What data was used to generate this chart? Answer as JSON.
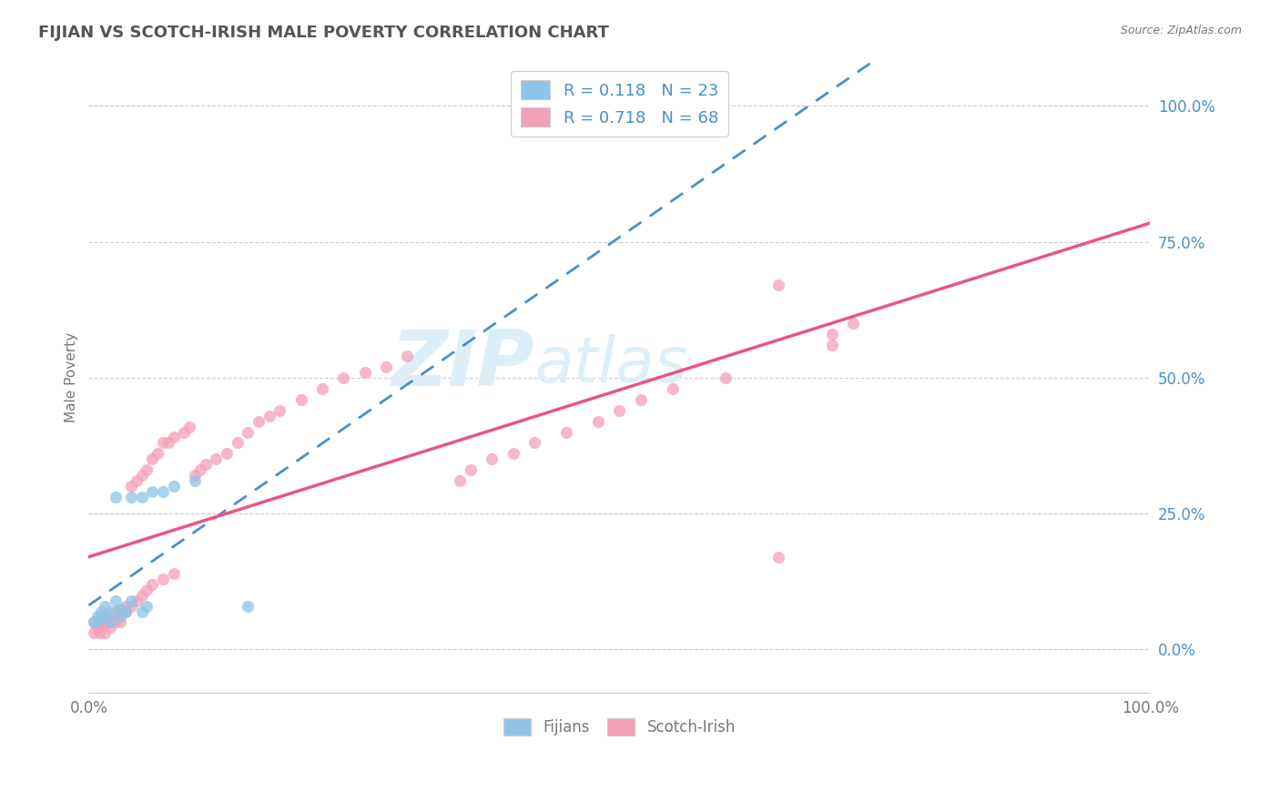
{
  "title": "FIJIAN VS SCOTCH-IRISH MALE POVERTY CORRELATION CHART",
  "source": "Source: ZipAtlas.com",
  "ylabel": "Male Poverty",
  "legend_labels": [
    "Fijians",
    "Scotch-Irish"
  ],
  "fijian_R": "0.118",
  "fijian_N": "23",
  "scotch_R": "0.718",
  "scotch_N": "68",
  "blue_color": "#8fc4e8",
  "pink_color": "#f4a0b8",
  "blue_line_color": "#4a90c4",
  "pink_line_color": "#e85585",
  "watermark_text": "ZIPatlas",
  "watermark_color": "#ddeef8",
  "fijian_points": [
    [
      0.5,
      5.0
    ],
    [
      0.8,
      6.0
    ],
    [
      1.0,
      5.5
    ],
    [
      1.2,
      7.0
    ],
    [
      1.5,
      8.0
    ],
    [
      1.5,
      6.0
    ],
    [
      2.0,
      7.0
    ],
    [
      2.0,
      5.0
    ],
    [
      2.5,
      9.0
    ],
    [
      2.5,
      28.0
    ],
    [
      3.0,
      6.0
    ],
    [
      3.0,
      7.5
    ],
    [
      3.5,
      7.0
    ],
    [
      4.0,
      9.0
    ],
    [
      4.0,
      28.0
    ],
    [
      5.0,
      28.0
    ],
    [
      5.0,
      7.0
    ],
    [
      5.5,
      8.0
    ],
    [
      6.0,
      29.0
    ],
    [
      7.0,
      29.0
    ],
    [
      8.0,
      30.0
    ],
    [
      10.0,
      31.0
    ],
    [
      15.0,
      8.0
    ]
  ],
  "scotch_points": [
    [
      0.5,
      3.0
    ],
    [
      0.5,
      5.0
    ],
    [
      0.8,
      4.0
    ],
    [
      1.0,
      5.0
    ],
    [
      1.0,
      3.0
    ],
    [
      1.2,
      4.0
    ],
    [
      1.5,
      5.0
    ],
    [
      1.5,
      3.0
    ],
    [
      2.0,
      5.0
    ],
    [
      2.0,
      4.0
    ],
    [
      2.0,
      6.0
    ],
    [
      2.5,
      5.0
    ],
    [
      2.5,
      7.0
    ],
    [
      3.0,
      5.0
    ],
    [
      3.0,
      7.0
    ],
    [
      3.0,
      6.0
    ],
    [
      3.5,
      7.0
    ],
    [
      3.5,
      8.0
    ],
    [
      4.0,
      8.0
    ],
    [
      4.0,
      30.0
    ],
    [
      4.5,
      9.0
    ],
    [
      4.5,
      31.0
    ],
    [
      5.0,
      32.0
    ],
    [
      5.0,
      10.0
    ],
    [
      5.5,
      33.0
    ],
    [
      5.5,
      11.0
    ],
    [
      6.0,
      35.0
    ],
    [
      6.0,
      12.0
    ],
    [
      6.5,
      36.0
    ],
    [
      7.0,
      38.0
    ],
    [
      7.0,
      13.0
    ],
    [
      7.5,
      38.0
    ],
    [
      8.0,
      39.0
    ],
    [
      8.0,
      14.0
    ],
    [
      9.0,
      40.0
    ],
    [
      9.5,
      41.0
    ],
    [
      10.0,
      32.0
    ],
    [
      10.5,
      33.0
    ],
    [
      11.0,
      34.0
    ],
    [
      12.0,
      35.0
    ],
    [
      13.0,
      36.0
    ],
    [
      14.0,
      38.0
    ],
    [
      15.0,
      40.0
    ],
    [
      16.0,
      42.0
    ],
    [
      17.0,
      43.0
    ],
    [
      18.0,
      44.0
    ],
    [
      20.0,
      46.0
    ],
    [
      22.0,
      48.0
    ],
    [
      24.0,
      50.0
    ],
    [
      26.0,
      51.0
    ],
    [
      28.0,
      52.0
    ],
    [
      30.0,
      54.0
    ],
    [
      35.0,
      31.0
    ],
    [
      36.0,
      33.0
    ],
    [
      38.0,
      35.0
    ],
    [
      40.0,
      36.0
    ],
    [
      42.0,
      38.0
    ],
    [
      45.0,
      40.0
    ],
    [
      48.0,
      42.0
    ],
    [
      50.0,
      44.0
    ],
    [
      52.0,
      46.0
    ],
    [
      55.0,
      48.0
    ],
    [
      60.0,
      50.0
    ],
    [
      65.0,
      17.0
    ],
    [
      65.0,
      67.0
    ],
    [
      70.0,
      56.0
    ],
    [
      70.0,
      58.0
    ],
    [
      72.0,
      60.0
    ]
  ],
  "xlim": [
    0,
    100
  ],
  "ylim": [
    -8,
    108
  ],
  "ytick_positions": [
    0,
    25,
    50,
    75,
    100
  ],
  "ytick_labels": [
    "0.0%",
    "25.0%",
    "50.0%",
    "75.0%",
    "100.0%"
  ],
  "xtick_positions": [
    0,
    100
  ],
  "xtick_labels": [
    "0.0%",
    "100.0%"
  ],
  "bg_color": "#ffffff",
  "grid_color": "#cccccc",
  "title_color": "#555555",
  "axis_label_color": "#777777",
  "ytick_color": "#4a90c4"
}
